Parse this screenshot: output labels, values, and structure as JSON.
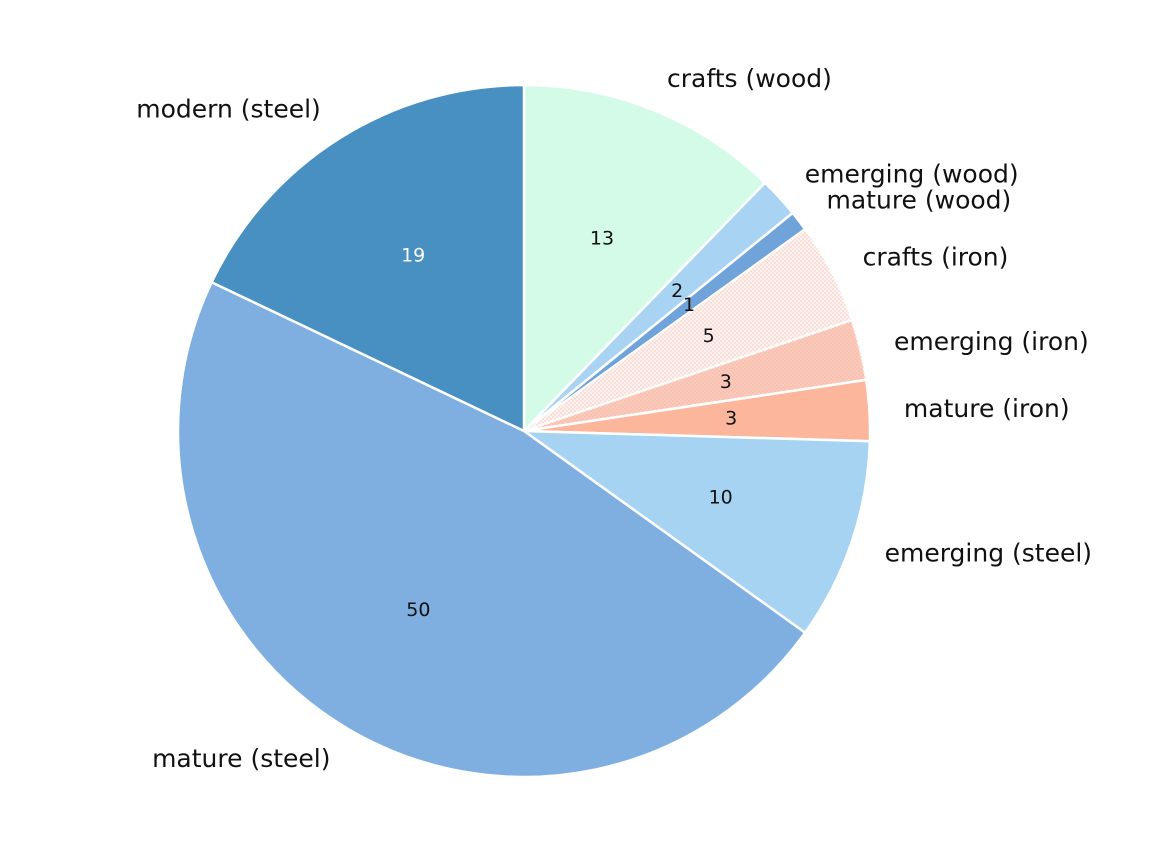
{
  "chart_data": {
    "type": "pie",
    "title": "",
    "start_angle_deg": 90,
    "direction": "clockwise",
    "slices": [
      {
        "name": "crafts (wood)",
        "value": 13,
        "color": "#d3fbe7",
        "value_color": "#111111",
        "hatch": false
      },
      {
        "name": "emerging (wood)",
        "value": 2,
        "color": "#a9d3f3",
        "value_color": "#111111",
        "hatch": false
      },
      {
        "name": "mature (wood)",
        "value": 1,
        "color": "#6fa3d9",
        "value_color": "#111111",
        "hatch": false
      },
      {
        "name": "crafts (iron)",
        "value": 5,
        "color": "#fcf1ef",
        "value_color": "#111111",
        "hatch": true
      },
      {
        "name": "emerging (iron)",
        "value": 3,
        "color": "#fbcaba",
        "value_color": "#111111",
        "hatch": true
      },
      {
        "name": "mature (iron)",
        "value": 3,
        "color": "#fbb69b",
        "value_color": "#111111",
        "hatch": false
      },
      {
        "name": "emerging (steel)",
        "value": 10,
        "color": "#a7d3f3",
        "value_color": "#111111",
        "hatch": false
      },
      {
        "name": "mature (steel)",
        "value": 50,
        "color": "#7eafe0",
        "value_color": "#111111",
        "hatch": false
      },
      {
        "name": "modern (steel)",
        "value": 19,
        "color": "#488fc2",
        "value_color": "#ffffff",
        "hatch": false
      }
    ]
  }
}
